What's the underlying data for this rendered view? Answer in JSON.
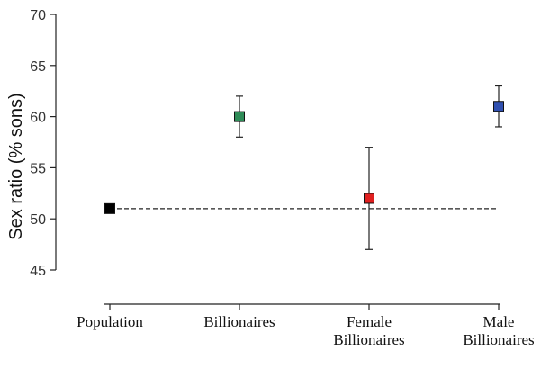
{
  "chart_data": {
    "type": "scatter",
    "title": "",
    "xlabel": "",
    "ylabel": "Sex ratio (% sons)",
    "ylim": [
      45,
      70
    ],
    "yticks": [
      45,
      50,
      55,
      60,
      65,
      70
    ],
    "categories": [
      [
        "Population"
      ],
      [
        "Billionaires"
      ],
      [
        "Female",
        "Billionaires"
      ],
      [
        "Male",
        "Billionaires"
      ]
    ],
    "points": [
      {
        "category": "Population",
        "value": 51,
        "lower": 51,
        "upper": 51,
        "color": "#000000"
      },
      {
        "category": "Billionaires",
        "value": 60,
        "lower": 58,
        "upper": 62,
        "color": "#2e8b57"
      },
      {
        "category": "Female Billionaires",
        "value": 52,
        "lower": 47,
        "upper": 57,
        "color": "#e02020"
      },
      {
        "category": "Male Billionaires",
        "value": 61,
        "lower": 59,
        "upper": 63,
        "color": "#3050b0"
      }
    ],
    "reference_line": {
      "value": 51,
      "style": "dashed"
    },
    "grid": false,
    "legend": "none"
  }
}
